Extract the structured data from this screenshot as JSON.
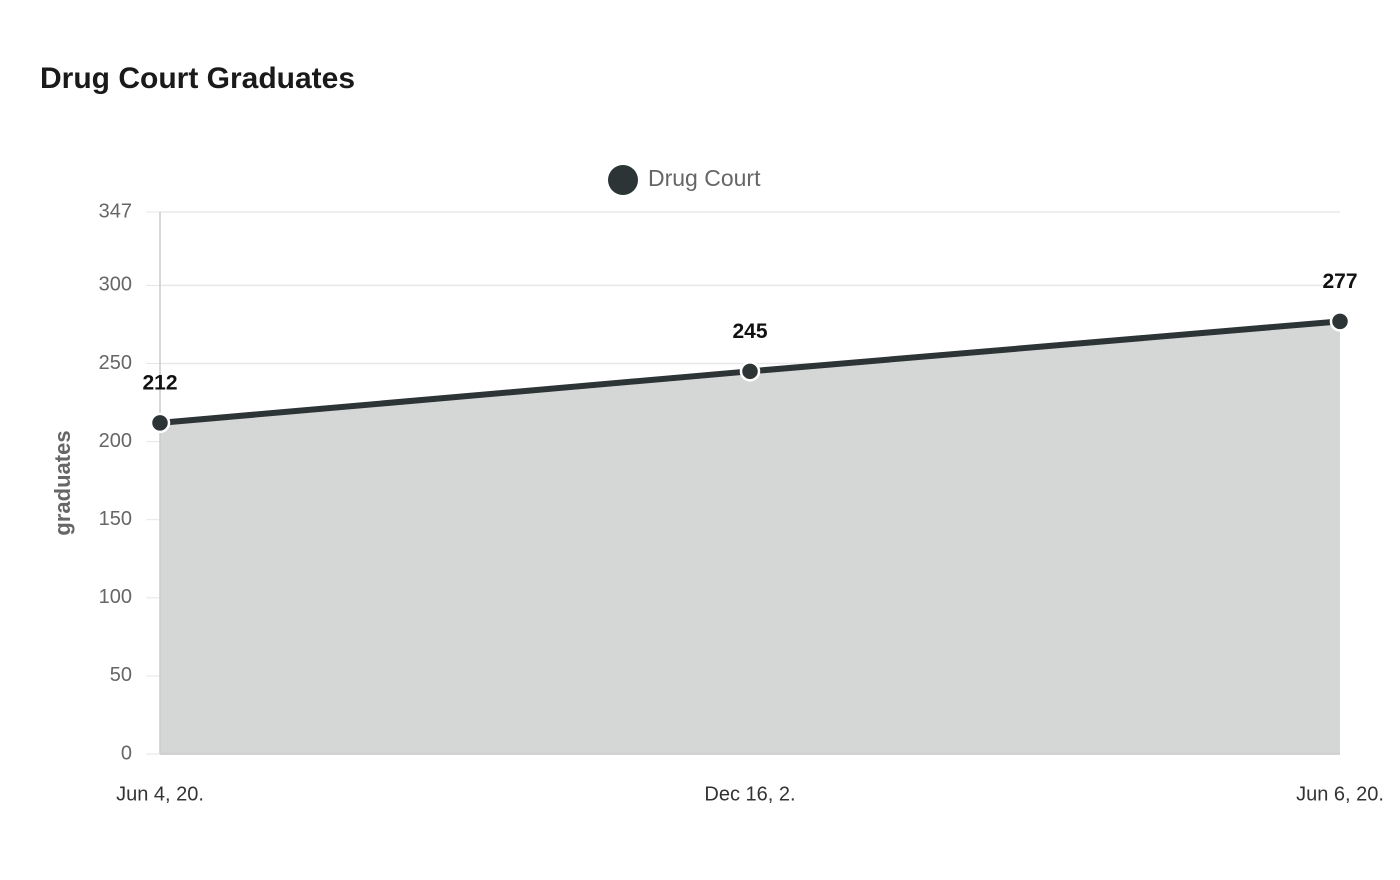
{
  "chart_data": {
    "type": "area",
    "title": "Drug Court Graduates",
    "y_label": "graduates",
    "categories": [
      "Jun 4, 20.",
      "Dec 16, 2.",
      "Jun 6, 20."
    ],
    "series": [
      {
        "name": "Drug Court",
        "color": "#2d3436",
        "fill": "#d5d6d6",
        "values": [
          212,
          245,
          277
        ]
      }
    ],
    "ylim": [
      0,
      347
    ],
    "yticks": [
      0,
      50,
      100,
      150,
      200,
      250,
      300,
      347
    ],
    "grid": true,
    "legend": "top"
  }
}
